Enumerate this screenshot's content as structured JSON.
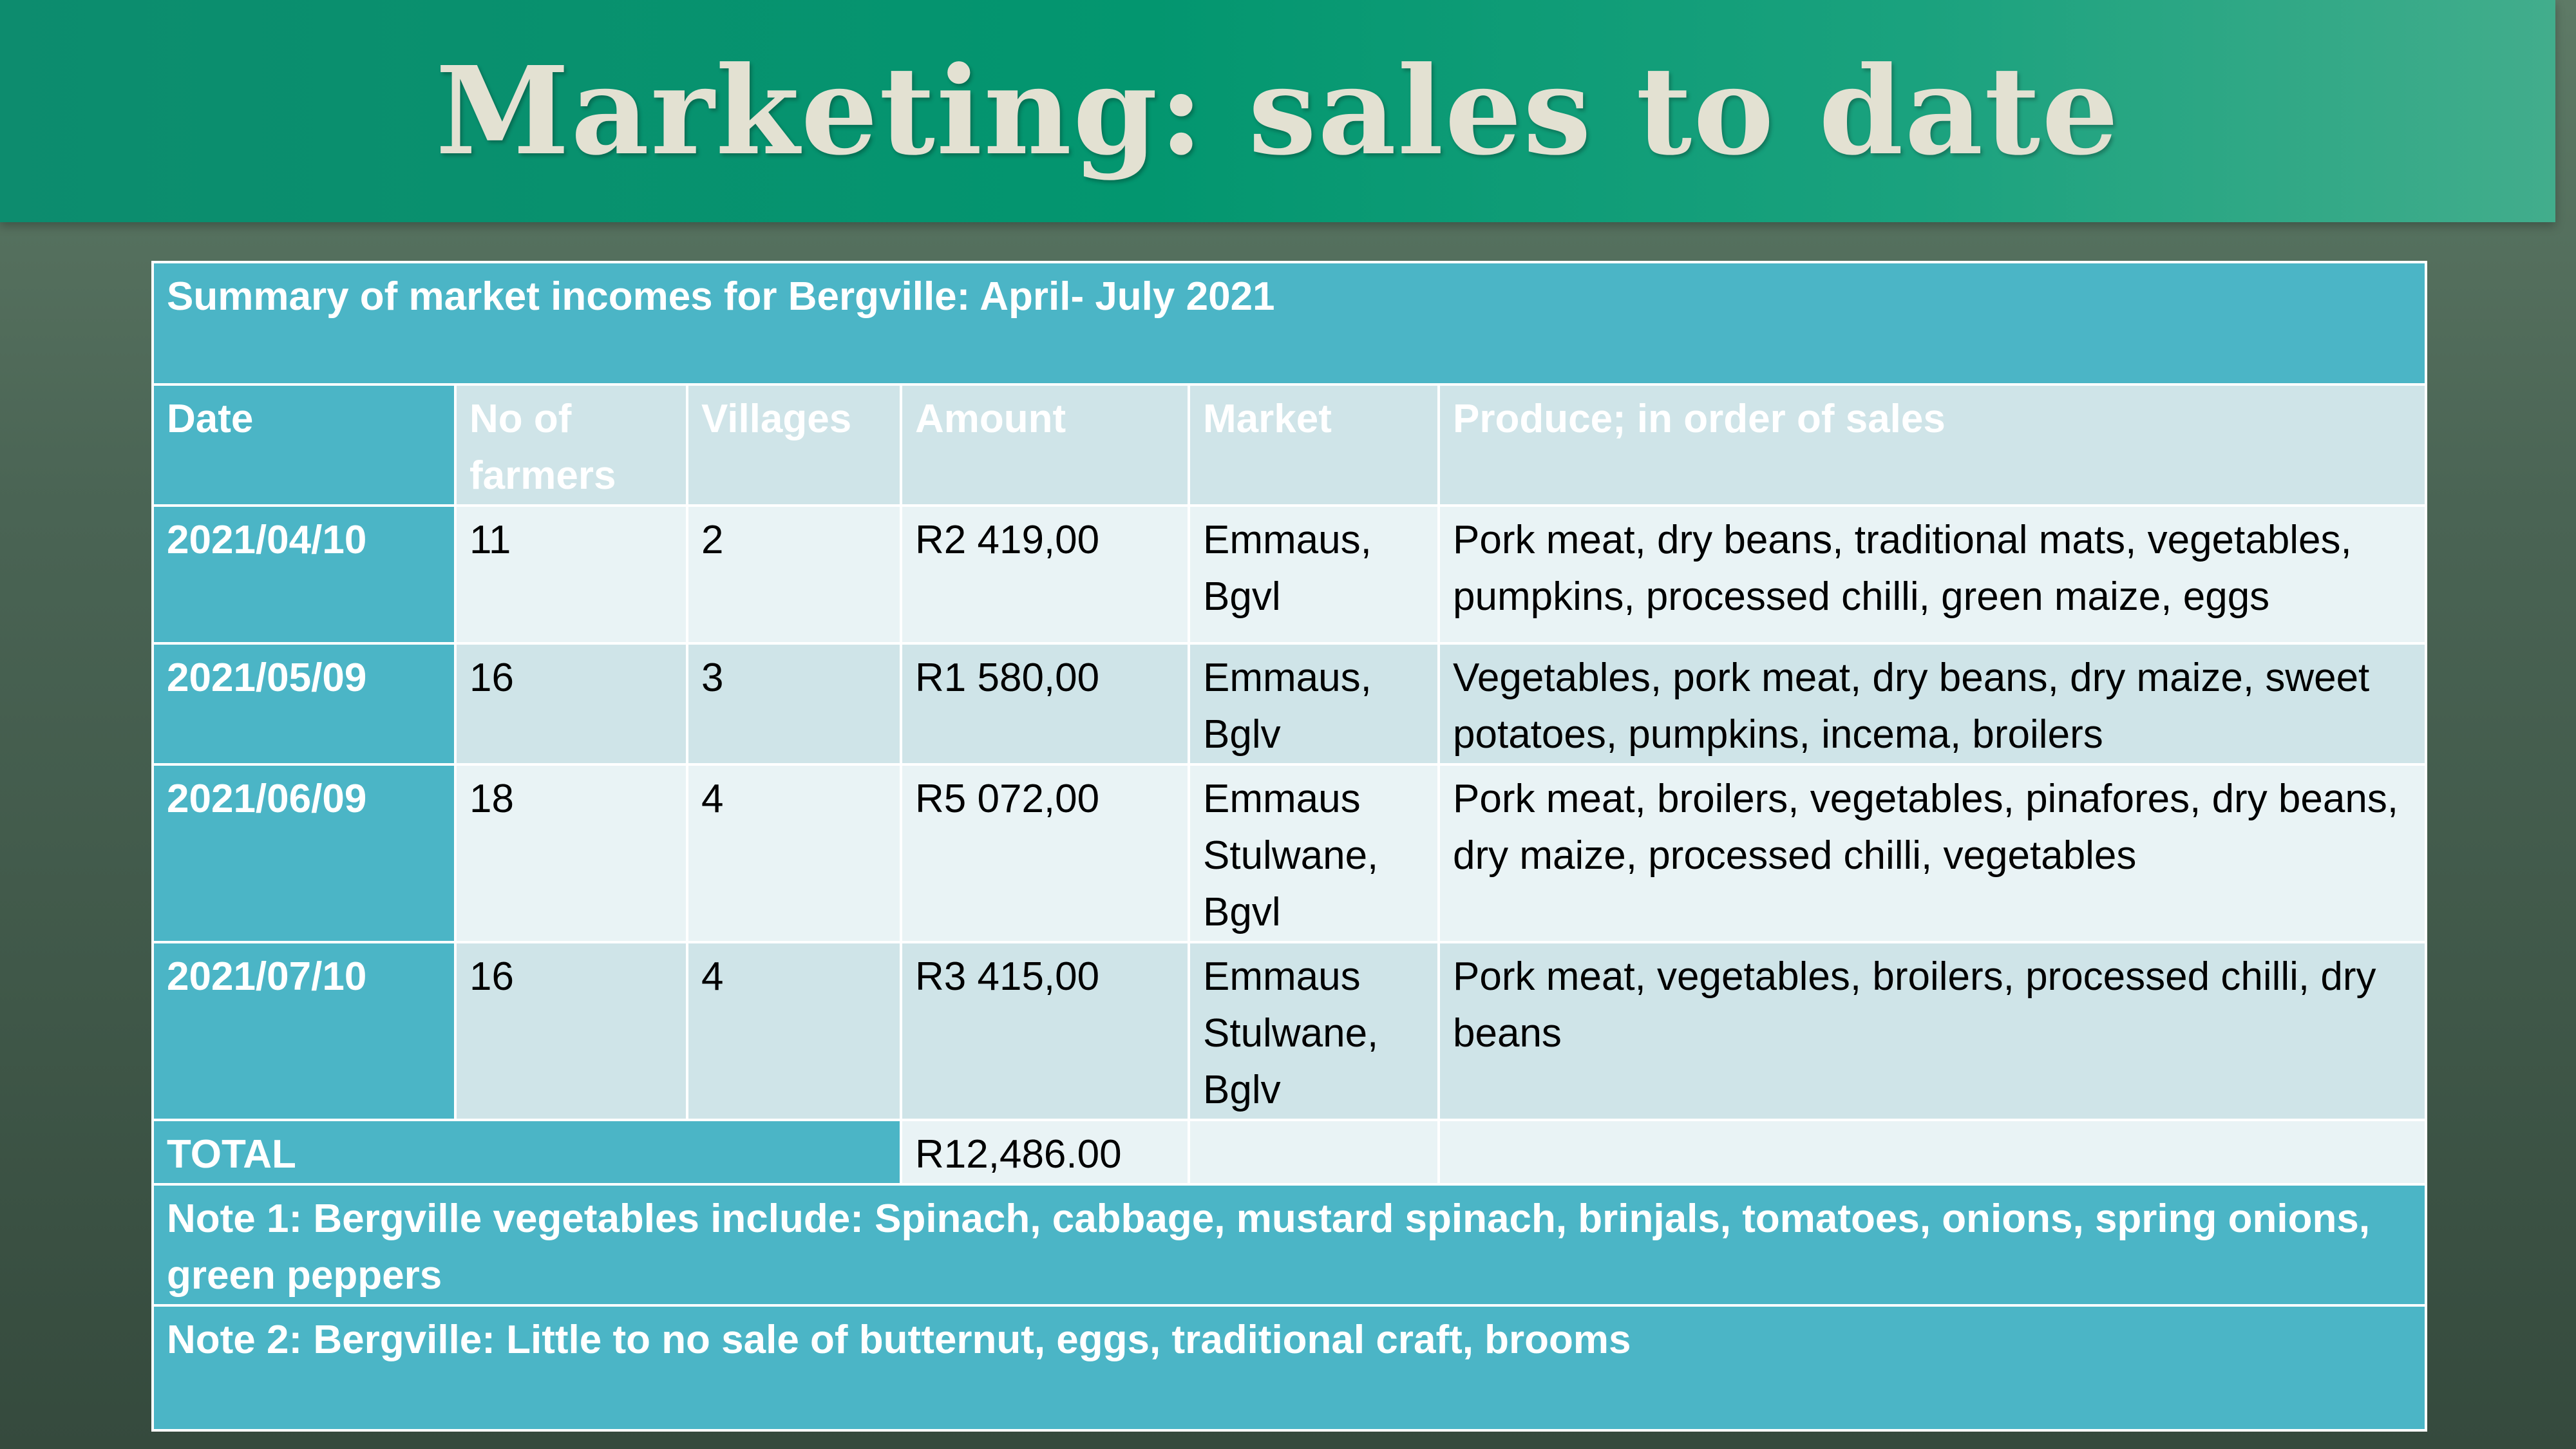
{
  "slide": {
    "title": "Marketing: sales to date"
  },
  "table": {
    "caption": "Summary of market incomes for Bergville: April- July 2021",
    "headers": {
      "date": "Date",
      "farmers": "No of farmers",
      "villages": "Villages",
      "amount": "Amount",
      "market": "Market",
      "produce": "Produce; in order of sales"
    },
    "rows": [
      {
        "date": "2021/04/10",
        "farmers": "11",
        "villages": "2",
        "amount": "R2 419,00",
        "market": "Emmaus, Bgvl",
        "produce": "Pork meat, dry beans, traditional mats, vegetables, pumpkins, processed chilli, green maize, eggs"
      },
      {
        "date": "2021/05/09",
        "farmers": "16",
        "villages": "3",
        "amount": "R1 580,00",
        "market": "Emmaus, Bglv",
        "produce": "Vegetables, pork meat, dry beans, dry maize, sweet potatoes, pumpkins, incema, broilers"
      },
      {
        "date": "2021/06/09",
        "farmers": "18",
        "villages": "4",
        "amount": "R5 072,00",
        "market": "Emmaus Stulwane, Bgvl",
        "produce": "Pork meat, broilers, vegetables, pinafores, dry beans, dry maize, processed chilli, vegetables"
      },
      {
        "date": "2021/07/10",
        "farmers": "16",
        "villages": "4",
        "amount": "R3 415,00",
        "market": "Emmaus Stulwane, Bglv",
        "produce": "Pork meat, vegetables, broilers, processed chilli, dry beans"
      }
    ],
    "total": {
      "label": "TOTAL",
      "amount": "R12,486.00"
    },
    "notes": [
      "Note 1:  Bergville vegetables include: Spinach, cabbage, mustard spinach, brinjals, tomatoes, onions, spring onions, green peppers",
      "Note 2:  Bergville: Little to no sale of butternut, eggs, traditional craft, brooms"
    ]
  }
}
